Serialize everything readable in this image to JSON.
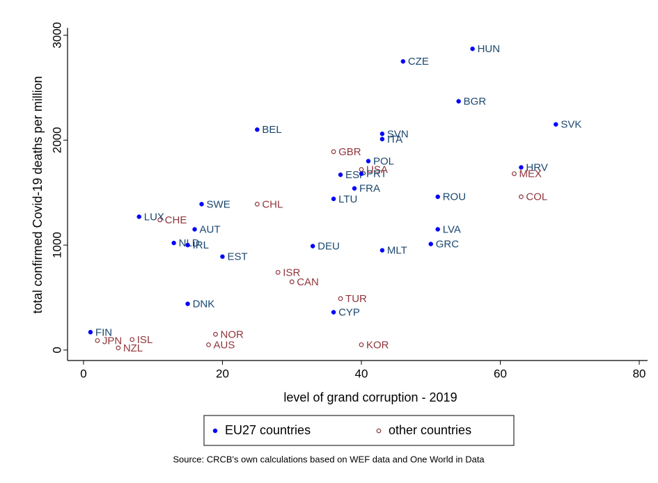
{
  "chart_data": {
    "type": "scatter",
    "xlabel": "level of grand corruption - 2019",
    "ylabel": "total confirmed Covid-19 deaths per million",
    "source": "Source: CRCB's own calculations based on WEF data and One World in Data",
    "xlim": [
      -2.3,
      81.2
    ],
    "xticks": [
      0,
      20,
      40,
      60,
      80
    ],
    "ylim": [
      -100,
      3070
    ],
    "yticks": [
      0,
      1000,
      2000,
      3000
    ],
    "grid": false,
    "series": [
      {
        "name": "EU27 countries",
        "color": "#0000ff",
        "label_color": "#1a476f",
        "marker": "filled",
        "labels": [
          "HUN",
          "CZE",
          "BGR",
          "SVK",
          "BEL",
          "SVN",
          "ITA",
          "POL",
          "HRV",
          "ESP",
          "PRT",
          "FRA",
          "ROU",
          "LTU",
          "SWE",
          "LUX",
          "AUT",
          "LVA",
          "NLD",
          "IRL",
          "GRC",
          "DEU",
          "MLT",
          "EST",
          "DNK",
          "CYP",
          "FIN"
        ],
        "x": [
          56,
          46,
          54,
          68,
          25,
          43,
          43,
          41,
          63,
          37,
          40,
          39,
          51,
          36,
          17,
          8,
          16,
          51,
          13,
          15,
          50,
          33,
          43,
          20,
          15,
          36,
          1
        ],
        "values": [
          2870,
          2750,
          2370,
          2150,
          2100,
          2060,
          2010,
          1800,
          1740,
          1670,
          1680,
          1540,
          1460,
          1440,
          1390,
          1270,
          1150,
          1150,
          1020,
          1000,
          1010,
          990,
          950,
          890,
          440,
          360,
          170
        ]
      },
      {
        "name": "other countries",
        "color": "#90353b",
        "label_color": "#90353b",
        "marker": "hollow",
        "labels": [
          "GBR",
          "USA",
          "MEX",
          "COL",
          "CHL",
          "CHE",
          "ISR",
          "CAN",
          "TUR",
          "NOR",
          "JPN",
          "ISL",
          "AUS",
          "KOR",
          "NZL"
        ],
        "x": [
          36,
          40,
          62,
          63,
          25,
          11,
          28,
          30,
          37,
          19,
          2,
          7,
          18,
          40,
          5
        ],
        "values": [
          1890,
          1720,
          1680,
          1460,
          1390,
          1240,
          740,
          650,
          490,
          150,
          90,
          100,
          50,
          50,
          20
        ]
      }
    ]
  }
}
